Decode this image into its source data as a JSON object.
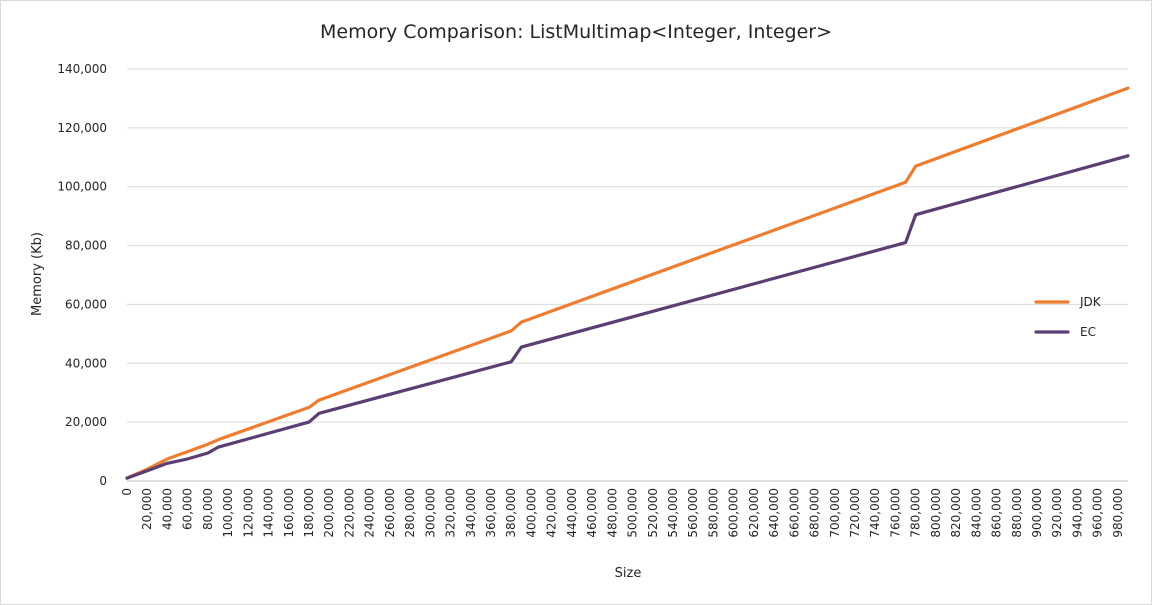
{
  "chart_data": {
    "type": "line",
    "title": "Memory Comparison: ListMultimap<Integer, Integer>",
    "xlabel": "Size",
    "ylabel": "Memory (Kb)",
    "xlim": [
      0,
      990000
    ],
    "ylim": [
      0,
      140000
    ],
    "y_ticks": [
      0,
      20000,
      40000,
      60000,
      80000,
      100000,
      120000,
      140000
    ],
    "y_tick_labels": [
      "0",
      "20,000",
      "40,000",
      "60,000",
      "80,000",
      "100,000",
      "120,000",
      "140,000"
    ],
    "x_ticks": [
      0,
      20000,
      40000,
      60000,
      80000,
      100000,
      120000,
      140000,
      160000,
      180000,
      200000,
      220000,
      240000,
      260000,
      280000,
      300000,
      320000,
      340000,
      360000,
      380000,
      400000,
      420000,
      440000,
      460000,
      480000,
      500000,
      520000,
      540000,
      560000,
      580000,
      600000,
      620000,
      640000,
      660000,
      680000,
      700000,
      720000,
      740000,
      760000,
      780000,
      800000,
      820000,
      840000,
      860000,
      880000,
      900000,
      920000,
      940000,
      960000,
      980000
    ],
    "x_tick_labels": [
      "0",
      "20,000",
      "40,000",
      "60,000",
      "80,000",
      "100,000",
      "120,000",
      "140,000",
      "160,000",
      "180,000",
      "200,000",
      "220,000",
      "240,000",
      "260,000",
      "280,000",
      "300,000",
      "320,000",
      "340,000",
      "360,000",
      "380,000",
      "400,000",
      "420,000",
      "440,000",
      "460,000",
      "480,000",
      "500,000",
      "520,000",
      "540,000",
      "560,000",
      "580,000",
      "600,000",
      "620,000",
      "640,000",
      "660,000",
      "680,000",
      "700,000",
      "720,000",
      "740,000",
      "760,000",
      "780,000",
      "800,000",
      "820,000",
      "840,000",
      "860,000",
      "880,000",
      "900,000",
      "920,000",
      "940,000",
      "960,000",
      "980,000"
    ],
    "grid": "horizontal",
    "legend_position": "right",
    "series": [
      {
        "name": "JDK",
        "color": "#ed7d31",
        "x": [
          0,
          20000,
          40000,
          60000,
          80000,
          90000,
          180000,
          190000,
          380000,
          390000,
          770000,
          780000,
          990000
        ],
        "values": [
          1000,
          4000,
          7500,
          10000,
          12500,
          14000,
          25000,
          27500,
          51000,
          54000,
          101500,
          107000,
          133500
        ]
      },
      {
        "name": "EC",
        "color": "#5b3e73",
        "x": [
          0,
          20000,
          40000,
          60000,
          80000,
          90000,
          180000,
          190000,
          380000,
          390000,
          770000,
          780000,
          990000
        ],
        "values": [
          1000,
          3500,
          6000,
          7500,
          9500,
          11500,
          20000,
          23000,
          40500,
          45500,
          81000,
          90500,
          110500
        ]
      }
    ]
  }
}
